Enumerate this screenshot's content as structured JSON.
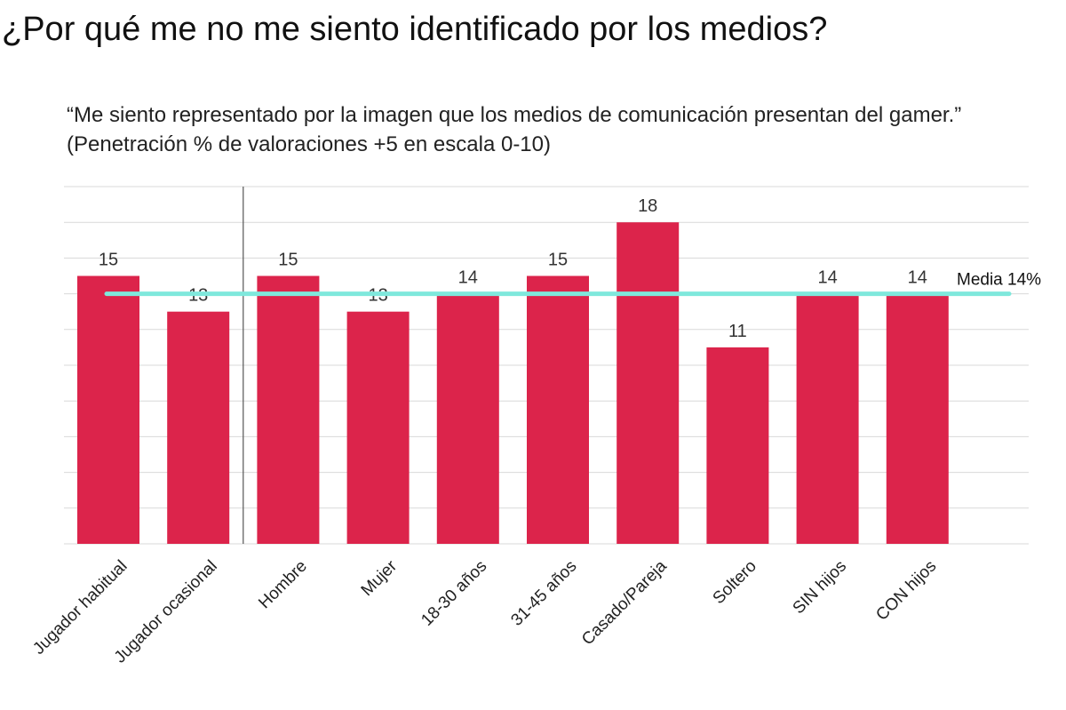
{
  "title": "¿Por qué me no me siento identificado por los medios?",
  "subtitle": "“Me siento representado por la imagen que los medios de comunicación presentan del gamer.” (Penetración % de valoraciones +5 en escala 0-10)",
  "chart_data": {
    "type": "bar",
    "categories": [
      "Jugador habitual",
      "Jugador ocasional",
      "Hombre",
      "Mujer",
      "18-30 años",
      "31-45 años",
      "Casado/Pareja",
      "Soltero",
      "SIN hijos",
      "CON hijos"
    ],
    "values": [
      15,
      13,
      15,
      13,
      14,
      15,
      18,
      11,
      14,
      14
    ],
    "ylim": [
      0,
      20
    ],
    "grid": true,
    "reference_line": {
      "value": 14,
      "label": "Media 14%",
      "color": "#7fe8dc"
    },
    "separator_after_category": 1,
    "colors": {
      "bar": "#dc244b",
      "grid": "#d9d9d9",
      "separator": "#555555"
    }
  }
}
